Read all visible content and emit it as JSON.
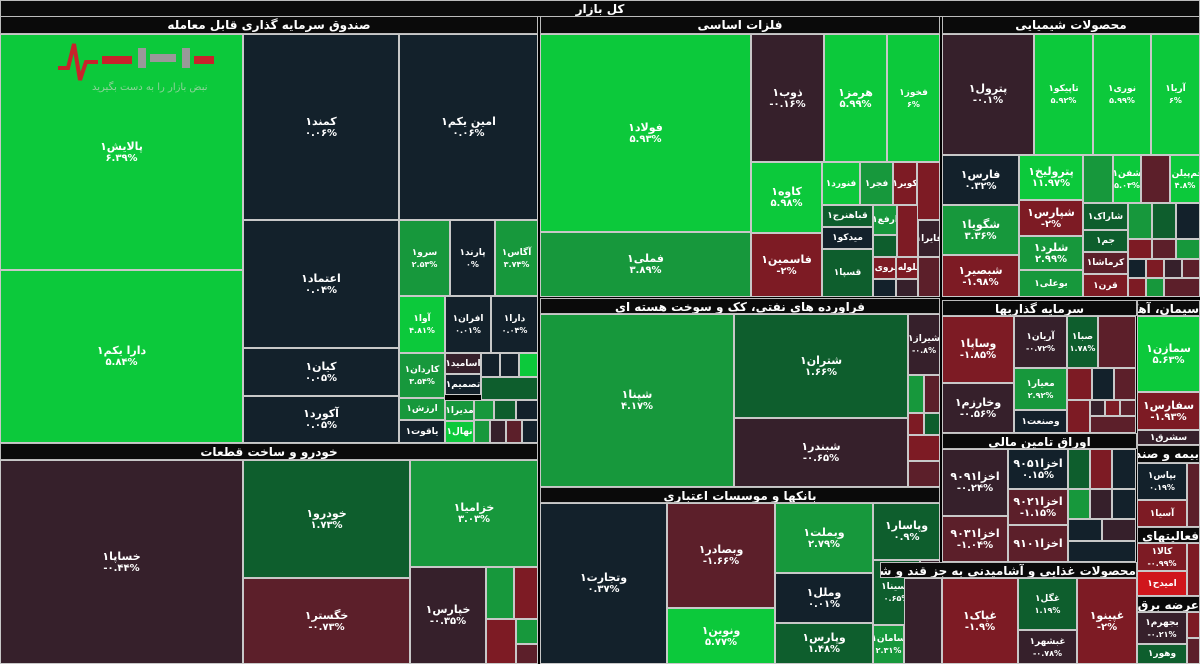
{
  "title": "کل بازار",
  "watermark": {
    "brand": "نبض بازار",
    "tagline": "نبض بازار را به دست بگیرید"
  },
  "colors": {
    "g3": "#0cc93b",
    "g2": "#17983c",
    "g1": "#0e5e2d",
    "n": "#13212b",
    "m": "#36202b",
    "r1": "#5c1f2a",
    "r2": "#7d1b24",
    "r3": "#d0161c"
  },
  "sectors": [
    {
      "title": "صندوق سرمایه گذاری قابل معامله",
      "tiles": [
        {
          "label": "پالایش۱",
          "change": "۶.۳۹%",
          "tone": "g3"
        },
        {
          "label": "دارا یکم۱",
          "change": "۵.۸۴%",
          "tone": "g3"
        },
        {
          "label": "کمند۱",
          "change": "۰.۰۶%",
          "tone": "n"
        },
        {
          "label": "امین یکم۱",
          "change": "۰.۰۶%",
          "tone": "n"
        },
        {
          "label": "اعتماد۱",
          "change": "۰.۰۴%",
          "tone": "n"
        },
        {
          "label": "کیان۱",
          "change": "۰.۰۵%",
          "tone": "n"
        },
        {
          "label": "آکورد۱",
          "change": "۰.۰۵%",
          "tone": "n"
        },
        {
          "label": "سرو۱",
          "change": "۲.۵۳%",
          "tone": "g2"
        },
        {
          "label": "پارند۱",
          "change": "۰%",
          "tone": "n"
        },
        {
          "label": "آگاس۱",
          "change": "۳.۷۴%",
          "tone": "g2"
        },
        {
          "label": "آوا۱",
          "change": "۴.۸۱%",
          "tone": "g3"
        },
        {
          "label": "افران۱",
          "change": "۰.۰۱%",
          "tone": "n"
        },
        {
          "label": "دارا۱",
          "change": "۰.۰۴%",
          "tone": "n"
        },
        {
          "label": "کاردان۱",
          "change": "۳.۵۴%",
          "tone": "g2"
        },
        {
          "label": "ارزش۱",
          "change": "",
          "tone": "g2"
        },
        {
          "label": "یاقوت۱",
          "change": "",
          "tone": "n"
        },
        {
          "label": "اسامید۱",
          "change": "",
          "tone": "m"
        },
        {
          "label": "تصمیم۱",
          "change": "",
          "tone": "n"
        },
        {
          "label": "مدیرا۱",
          "change": "",
          "tone": "g2"
        },
        {
          "label": "نهال۱",
          "change": "",
          "tone": "g3"
        }
      ]
    },
    {
      "title": "خودرو و ساخت قطعات",
      "tiles": [
        {
          "label": "خساپا۱",
          "change": "-۰.۴۴%",
          "tone": "m"
        },
        {
          "label": "خودرو۱",
          "change": "۱.۷۳%",
          "tone": "g1"
        },
        {
          "label": "خگستر۱",
          "change": "-۰.۷۳%",
          "tone": "r1"
        },
        {
          "label": "خزامیا۱",
          "change": "۳.۰۳%",
          "tone": "g2"
        },
        {
          "label": "خپارس۱",
          "change": "-۰.۳۵%",
          "tone": "m"
        }
      ]
    },
    {
      "title": "فلزات اساسی",
      "tiles": [
        {
          "label": "فولاد۱",
          "change": "۵.۹۳%",
          "tone": "g3"
        },
        {
          "label": "فملی۱",
          "change": "۳.۸۹%",
          "tone": "g2"
        },
        {
          "label": "ذوب۱",
          "change": "-۰.۱۶%",
          "tone": "m"
        },
        {
          "label": "هرمز۱",
          "change": "۵.۹۹%",
          "tone": "g3"
        },
        {
          "label": "فخوز۱",
          "change": "۶%",
          "tone": "g3"
        },
        {
          "label": "کاوه۱",
          "change": "۵.۹۸%",
          "tone": "g3"
        },
        {
          "label": "فاسمین۱",
          "change": "-۲%",
          "tone": "r2"
        },
        {
          "label": "فنورد۱",
          "change": "",
          "tone": "g3"
        },
        {
          "label": "فجر۱",
          "change": "",
          "tone": "g2"
        },
        {
          "label": "کویر۱",
          "change": "",
          "tone": "r2"
        },
        {
          "label": "قباهنرج۱",
          "change": "",
          "tone": "g1"
        },
        {
          "label": "ارفع۱",
          "change": "",
          "tone": "g2"
        },
        {
          "label": "میدکو۱",
          "change": "",
          "tone": "n"
        },
        {
          "label": "فروی۱",
          "change": "",
          "tone": "r2"
        },
        {
          "label": "فلوله۱",
          "change": "",
          "tone": "r2"
        },
        {
          "label": "قسپا۱",
          "change": "",
          "tone": "g1"
        },
        {
          "label": "فایرا۱",
          "change": "",
          "tone": "m"
        }
      ]
    },
    {
      "title": "محصولات شیمیایی",
      "tiles": [
        {
          "label": "پترول۱",
          "change": "-۰.۱%",
          "tone": "m"
        },
        {
          "label": "تاپیکو۱",
          "change": "۵.۹۲%",
          "tone": "g3"
        },
        {
          "label": "نوری۱",
          "change": "۵.۹۹%",
          "tone": "g3"
        },
        {
          "label": "آریا۱",
          "change": "۶%",
          "tone": "g3"
        },
        {
          "label": "فارس۱",
          "change": "۰.۳۲%",
          "tone": "n"
        },
        {
          "label": "پترولیخ۱",
          "change": "۱۱.۹۷%",
          "tone": "g3"
        },
        {
          "label": "شگویا۱",
          "change": "۳.۳۶%",
          "tone": "g2"
        },
        {
          "label": "شبصیر۱",
          "change": "-۱.۹۸%",
          "tone": "r2"
        },
        {
          "label": "شپارس۱",
          "change": "-۲%",
          "tone": "r2"
        },
        {
          "label": "شلرد۱",
          "change": "۲.۹۹%",
          "tone": "g2"
        },
        {
          "label": "بوعلی۱",
          "change": "",
          "tone": "g2"
        },
        {
          "label": "شاراک۱",
          "change": "",
          "tone": "g1"
        },
        {
          "label": "جم۱",
          "change": "",
          "tone": "g1"
        },
        {
          "label": "کرماشا۱",
          "change": "",
          "tone": "r1"
        },
        {
          "label": "قرن۱",
          "change": "",
          "tone": "r2"
        },
        {
          "label": "شفن۱",
          "change": "۵.۰۳%",
          "tone": "g3"
        },
        {
          "label": "جم‌پیلن۱",
          "change": "۴.۸%",
          "tone": "g3"
        }
      ]
    },
    {
      "title": "فراورده های نفتی، کک و سوخت هسته ای",
      "tiles": [
        {
          "label": "شپنا۱",
          "change": "۴.۱۷%",
          "tone": "g2"
        },
        {
          "label": "شتران۱",
          "change": "۱.۶۶%",
          "tone": "g1"
        },
        {
          "label": "شبندر۱",
          "change": "-۰.۶۵%",
          "tone": "m"
        },
        {
          "label": "شیراز۱",
          "change": "-۰.۸%",
          "tone": "m"
        }
      ]
    },
    {
      "title": "بانکها و موسسات اعتباری",
      "tiles": [
        {
          "label": "وتجارت۱",
          "change": "۰.۳۷%",
          "tone": "n"
        },
        {
          "label": "وبصادر۱",
          "change": "-۱.۶۶%",
          "tone": "r1"
        },
        {
          "label": "ونوین۱",
          "change": "۵.۷۷%",
          "tone": "g3"
        },
        {
          "label": "وبملت۱",
          "change": "۲.۷۹%",
          "tone": "g2"
        },
        {
          "label": "وملل۱",
          "change": "۰.۰۱%",
          "tone": "n"
        },
        {
          "label": "وپارس۱",
          "change": "۱.۴۸%",
          "tone": "g1"
        },
        {
          "label": "وپاسار۱",
          "change": "۰.۹%",
          "tone": "g1"
        },
        {
          "label": "وسینا۱",
          "change": "۰.۶۵%",
          "tone": "g1"
        },
        {
          "label": "سامان۱",
          "change": "۲.۳۱%",
          "tone": "g2"
        }
      ]
    },
    {
      "title": "سرمایه گذاریها",
      "tiles": [
        {
          "label": "وساپا۱",
          "change": "-۱.۸۵%",
          "tone": "r2"
        },
        {
          "label": "آریان۱",
          "change": "-۰.۷۲%",
          "tone": "m"
        },
        {
          "label": "صبا۱",
          "change": "۱.۷۸%",
          "tone": "g1"
        },
        {
          "label": "معیار۱",
          "change": "۲.۹۲%",
          "tone": "g2"
        },
        {
          "label": "وخارزم۱",
          "change": "-۰.۵۶%",
          "tone": "m"
        },
        {
          "label": "وصنعت۱",
          "change": "",
          "tone": "n"
        }
      ]
    },
    {
      "title": "سیمان، آهک و گچ",
      "tiles": [
        {
          "label": "سمازن۱",
          "change": "۵.۶۳%",
          "tone": "g3"
        },
        {
          "label": "سفارس۱",
          "change": "-۱.۹۳%",
          "tone": "r2"
        },
        {
          "label": "سشرق۱",
          "change": "",
          "tone": "m"
        }
      ]
    },
    {
      "title": "اوراق تامین مالی",
      "tiles": [
        {
          "label": "اخزا۹۰۹۱",
          "change": "-۰.۲۴%",
          "tone": "m"
        },
        {
          "label": "اخزا۹۰۵۱",
          "change": "۰.۱۵%",
          "tone": "n"
        },
        {
          "label": "اخزا۹۰۲۱",
          "change": "-۱.۱۵%",
          "tone": "r1"
        },
        {
          "label": "اخزا۹۰۳۱",
          "change": "-۱.۰۴%",
          "tone": "r1"
        },
        {
          "label": "اخزا۹۱۰۱",
          "change": "",
          "tone": "r1"
        }
      ]
    },
    {
      "title": "بیمه و صندوق بازنشستگی به جز تامین اجتماعی",
      "tiles": [
        {
          "label": "بپاس۱",
          "change": "۰.۱۹%",
          "tone": "n"
        },
        {
          "label": "آسیا۱",
          "change": "",
          "tone": "r2"
        }
      ]
    },
    {
      "title": "فعالیتهای کمکی به نهادهای مالی واسط",
      "tiles": [
        {
          "label": "کالا۱",
          "change": "-۰.۹۹%",
          "tone": "r2"
        },
        {
          "label": "امیدح۱",
          "change": "",
          "tone": "r3"
        }
      ]
    },
    {
      "title": "محصولات غذایی و آشامیدنی به جز قند و شکر",
      "tiles": [
        {
          "label": "غپاک۱",
          "change": "-۱.۹%",
          "tone": "r2"
        },
        {
          "label": "غگل۱",
          "change": "۱.۱۹%",
          "tone": "g1"
        },
        {
          "label": "غبشهر۱",
          "change": "-۰.۷۸%",
          "tone": "m"
        },
        {
          "label": "غپینو۱",
          "change": "-۲%",
          "tone": "r2"
        }
      ]
    },
    {
      "title": "عرضه برق، گاز، بخاروآب گرم",
      "tiles": [
        {
          "label": "بجهرم۱",
          "change": "-۰.۲۱%",
          "tone": "m"
        },
        {
          "label": "وهور۱",
          "change": "",
          "tone": "g1"
        }
      ]
    }
  ]
}
